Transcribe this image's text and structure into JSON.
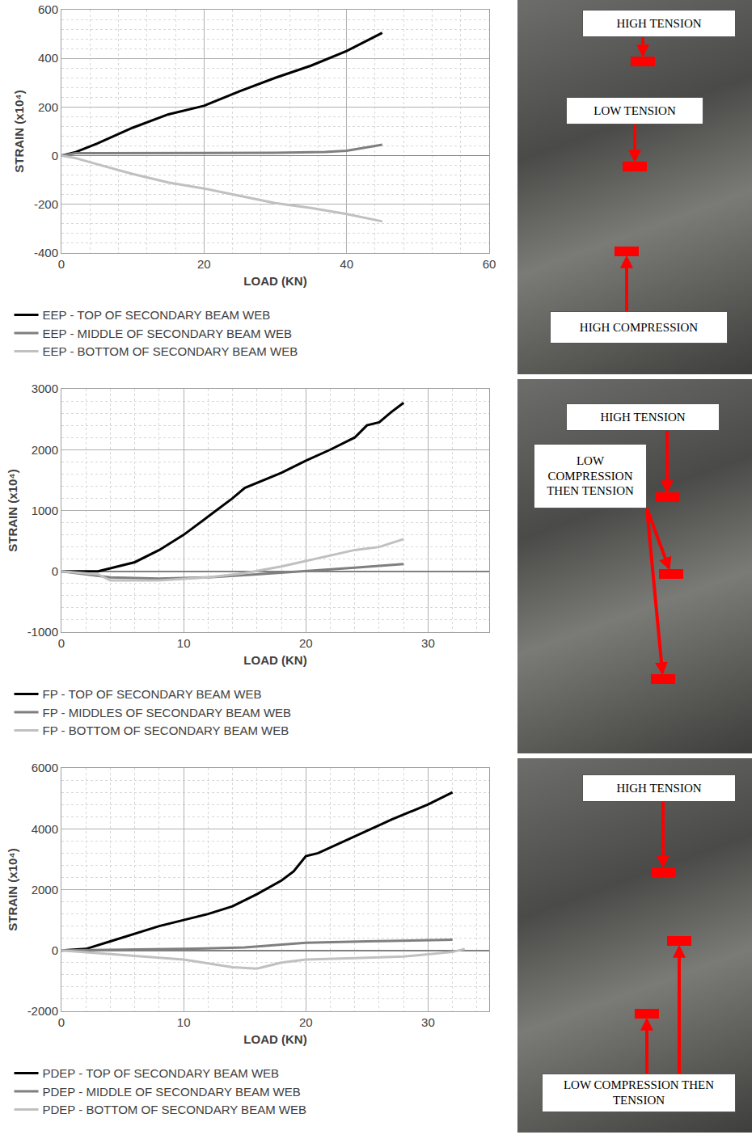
{
  "chart_data": [
    {
      "type": "line",
      "x_label": "LOAD (KN)",
      "y_label": "STRAIN (x10⁴)",
      "xlim": [
        0,
        60
      ],
      "xticks": [
        0,
        20,
        40,
        60
      ],
      "ylim": [
        -400,
        600
      ],
      "yticks": [
        -400,
        -200,
        0,
        200,
        400,
        600
      ],
      "grid": true,
      "legend": "bottom",
      "annotations": [
        "HIGH TENSION",
        "LOW TENSION",
        "HIGH COMPRESSION"
      ],
      "series": [
        {
          "name": "EEP - TOP OF SECONDARY BEAM WEB",
          "color": "#000000",
          "x": [
            0,
            2,
            5,
            10,
            15,
            20,
            25,
            30,
            35,
            40,
            43,
            45
          ],
          "values": [
            0,
            15,
            50,
            115,
            170,
            205,
            265,
            320,
            370,
            430,
            475,
            505
          ]
        },
        {
          "name": "EEP - MIDDLE OF SECONDARY BEAM WEB",
          "color": "#7f7f7f",
          "x": [
            0,
            2,
            5,
            10,
            20,
            30,
            37,
            40,
            42,
            45
          ],
          "values": [
            0,
            10,
            10,
            10,
            10,
            12,
            15,
            20,
            30,
            45
          ]
        },
        {
          "name": "EEP - BOTTOM OF SECONDARY BEAM WEB",
          "color": "#c0c0c0",
          "x": [
            0,
            2,
            5,
            10,
            15,
            20,
            25,
            30,
            35,
            40,
            45
          ],
          "values": [
            0,
            -10,
            -35,
            -75,
            -110,
            -135,
            -165,
            -195,
            -215,
            -240,
            -270
          ]
        }
      ]
    },
    {
      "type": "line",
      "x_label": "LOAD (KN)",
      "y_label": "STRAIN (x10⁴)",
      "xlim": [
        0,
        35
      ],
      "xticks": [
        0,
        10,
        20,
        30
      ],
      "ylim": [
        -1000,
        3000
      ],
      "yticks": [
        -1000,
        0,
        1000,
        2000,
        3000
      ],
      "grid": true,
      "legend": "bottom",
      "annotations": [
        "HIGH TENSION",
        "LOW COMPRESSION THEN TENSION"
      ],
      "series": [
        {
          "name": "FP - TOP OF SECONDARY BEAM WEB",
          "color": "#000000",
          "x": [
            0,
            3,
            4,
            6,
            8,
            10,
            12,
            14,
            15,
            16,
            18,
            20,
            22,
            24,
            25,
            26,
            27,
            28
          ],
          "values": [
            0,
            0,
            50,
            150,
            350,
            600,
            900,
            1200,
            1370,
            1450,
            1620,
            1820,
            2000,
            2200,
            2400,
            2450,
            2620,
            2770
          ]
        },
        {
          "name": "FP - MIDDLES OF SECONDARY BEAM WEB",
          "color": "#7f7f7f",
          "x": [
            0,
            4,
            8,
            12,
            16,
            20,
            24,
            28
          ],
          "values": [
            0,
            -100,
            -120,
            -100,
            -50,
            0,
            60,
            120
          ]
        },
        {
          "name": "FP - BOTTOM OF SECONDARY BEAM WEB",
          "color": "#c0c0c0",
          "x": [
            0,
            3,
            4,
            8,
            12,
            15,
            18,
            20,
            22,
            24,
            26,
            28
          ],
          "values": [
            0,
            -50,
            -150,
            -150,
            -100,
            -30,
            80,
            170,
            250,
            350,
            400,
            530
          ]
        }
      ]
    },
    {
      "type": "line",
      "x_label": "LOAD (KN)",
      "y_label": "STRAIN (x10⁴)",
      "xlim": [
        0,
        35
      ],
      "xticks": [
        0,
        10,
        20,
        30
      ],
      "ylim": [
        -2000,
        6000
      ],
      "yticks": [
        -2000,
        0,
        2000,
        4000,
        6000
      ],
      "grid": true,
      "legend": "bottom",
      "annotations": [
        "HIGH TENSION",
        "LOW COMPRESSION THEN TENSION"
      ],
      "series": [
        {
          "name": "PDEP - TOP OF SECONDARY BEAM WEB",
          "color": "#000000",
          "x": [
            0,
            2,
            4,
            6,
            8,
            10,
            12,
            14,
            16,
            18,
            19,
            20,
            21,
            24,
            27,
            30,
            32
          ],
          "values": [
            0,
            50,
            300,
            550,
            800,
            1000,
            1200,
            1450,
            1850,
            2300,
            2600,
            3100,
            3200,
            3750,
            4300,
            4800,
            5200
          ]
        },
        {
          "name": "PDEP - MIDDLE OF SECONDARY BEAM WEB",
          "color": "#7f7f7f",
          "x": [
            0,
            10,
            15,
            20,
            25,
            32
          ],
          "values": [
            0,
            50,
            100,
            250,
            300,
            350
          ]
        },
        {
          "name": "PDEP - BOTTOM OF SECONDARY BEAM WEB",
          "color": "#c0c0c0",
          "x": [
            0,
            5,
            10,
            14,
            16,
            18,
            20,
            24,
            28,
            32,
            33
          ],
          "values": [
            0,
            -150,
            -300,
            -550,
            -600,
            -400,
            -300,
            -250,
            -200,
            -50,
            50
          ]
        }
      ]
    }
  ]
}
